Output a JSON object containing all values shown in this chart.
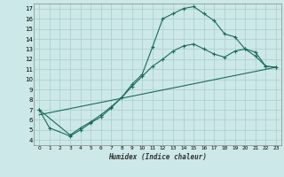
{
  "title": "",
  "xlabel": "Humidex (Indice chaleur)",
  "bg_color": "#cce8e8",
  "line_color": "#1a6b5a",
  "grid_color": "#aacccc",
  "xlim": [
    -0.5,
    23.5
  ],
  "ylim": [
    3.5,
    17.5
  ],
  "xticks": [
    0,
    1,
    2,
    3,
    4,
    5,
    6,
    7,
    8,
    9,
    10,
    11,
    12,
    13,
    14,
    15,
    16,
    17,
    18,
    19,
    20,
    21,
    22,
    23
  ],
  "yticks": [
    4,
    5,
    6,
    7,
    8,
    9,
    10,
    11,
    12,
    13,
    14,
    15,
    16,
    17
  ],
  "line1_x": [
    0,
    1,
    3,
    4,
    5,
    6,
    7,
    8,
    9,
    10,
    11,
    12,
    13,
    14,
    15,
    16,
    17,
    18,
    19,
    20,
    21,
    22,
    23
  ],
  "line1_y": [
    7.0,
    5.2,
    4.4,
    5.0,
    5.7,
    6.3,
    7.2,
    8.2,
    9.5,
    10.5,
    13.2,
    16.0,
    16.5,
    17.0,
    17.2,
    16.5,
    15.8,
    14.5,
    14.2,
    13.0,
    12.7,
    11.3,
    11.2
  ],
  "line2_x": [
    0,
    3,
    4,
    5,
    6,
    7,
    8,
    9,
    10,
    11,
    12,
    13,
    14,
    15,
    16,
    17,
    18,
    19,
    20,
    21,
    22,
    23
  ],
  "line2_y": [
    7.0,
    4.5,
    5.2,
    5.8,
    6.5,
    7.3,
    8.2,
    9.3,
    10.3,
    11.3,
    12.0,
    12.8,
    13.3,
    13.5,
    13.0,
    12.5,
    12.2,
    12.8,
    13.0,
    12.3,
    11.3,
    11.2
  ],
  "line3_x": [
    0,
    23
  ],
  "line3_y": [
    6.5,
    11.2
  ]
}
